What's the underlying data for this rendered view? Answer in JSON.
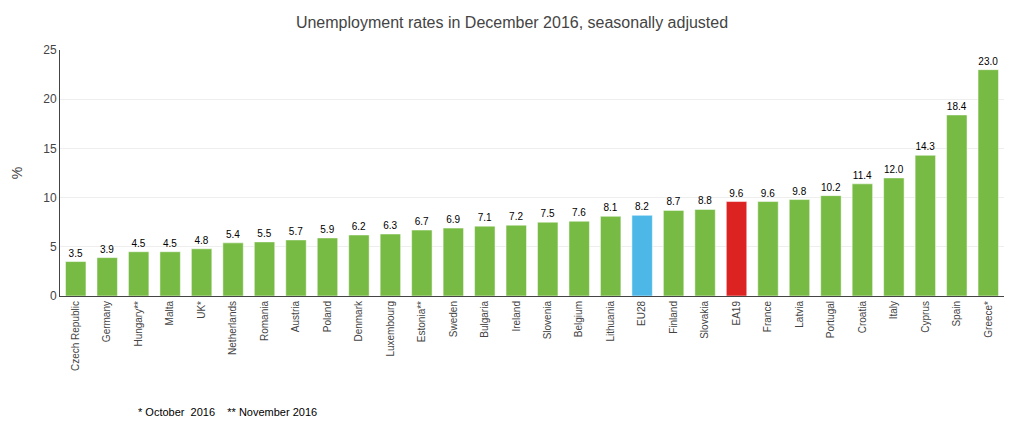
{
  "chart_data": {
    "type": "bar",
    "title": "Unemployment rates in December 2016, seasonally adjusted",
    "ylabel": "% ",
    "categories": [
      "Czech Republic",
      "Germany",
      "Hungary**",
      "Malta",
      "UK*",
      "Netherlands",
      "Romania",
      "Austria",
      "Poland",
      "Denmark",
      "Luxembourg",
      "Estonia**",
      "Sweden",
      "Bulgaria",
      "Ireland",
      "Slovenia",
      "Belgium",
      "Lithuania",
      "EU28",
      "Finland",
      "Slovakia",
      "EA19",
      "France",
      "Latvia",
      "Portugal",
      "Croatia",
      "Italy",
      "Cyprus",
      "Spain",
      "Greece*"
    ],
    "values": [
      3.5,
      3.9,
      4.5,
      4.5,
      4.8,
      5.4,
      5.5,
      5.7,
      5.9,
      6.2,
      6.3,
      6.7,
      6.9,
      7.1,
      7.2,
      7.5,
      7.6,
      8.1,
      8.2,
      8.7,
      8.8,
      9.6,
      9.6,
      9.8,
      10.2,
      11.4,
      12.0,
      14.3,
      18.4,
      23.0
    ],
    "value_labels": [
      "3.5",
      "3.9",
      "4.5",
      "4.5",
      "4.8",
      "5.4",
      "5.5",
      "5.7",
      "5.9",
      "6.2",
      "6.3",
      "6.7",
      "6.9",
      "7.1",
      "7.2",
      "7.5",
      "7.6",
      "8.1",
      "8.2",
      "8.7",
      "8.8",
      "9.6",
      "9.6",
      "9.8",
      "10.2",
      "11.4",
      "12.0",
      "14.3",
      "18.4",
      "23.0"
    ],
    "colors": [
      "#77bb44",
      "#77bb44",
      "#77bb44",
      "#77bb44",
      "#77bb44",
      "#77bb44",
      "#77bb44",
      "#77bb44",
      "#77bb44",
      "#77bb44",
      "#77bb44",
      "#77bb44",
      "#77bb44",
      "#77bb44",
      "#77bb44",
      "#77bb44",
      "#77bb44",
      "#77bb44",
      "#4db8e8",
      "#77bb44",
      "#77bb44",
      "#dd2222",
      "#77bb44",
      "#77bb44",
      "#77bb44",
      "#77bb44",
      "#77bb44",
      "#77bb44",
      "#77bb44",
      "#77bb44"
    ],
    "ylim": [
      0,
      25
    ],
    "yticks": [
      0,
      5,
      10,
      15,
      20,
      25
    ],
    "grid": true,
    "data_labels": true,
    "annotations": [
      "* October  2016    ** November 2016"
    ]
  }
}
